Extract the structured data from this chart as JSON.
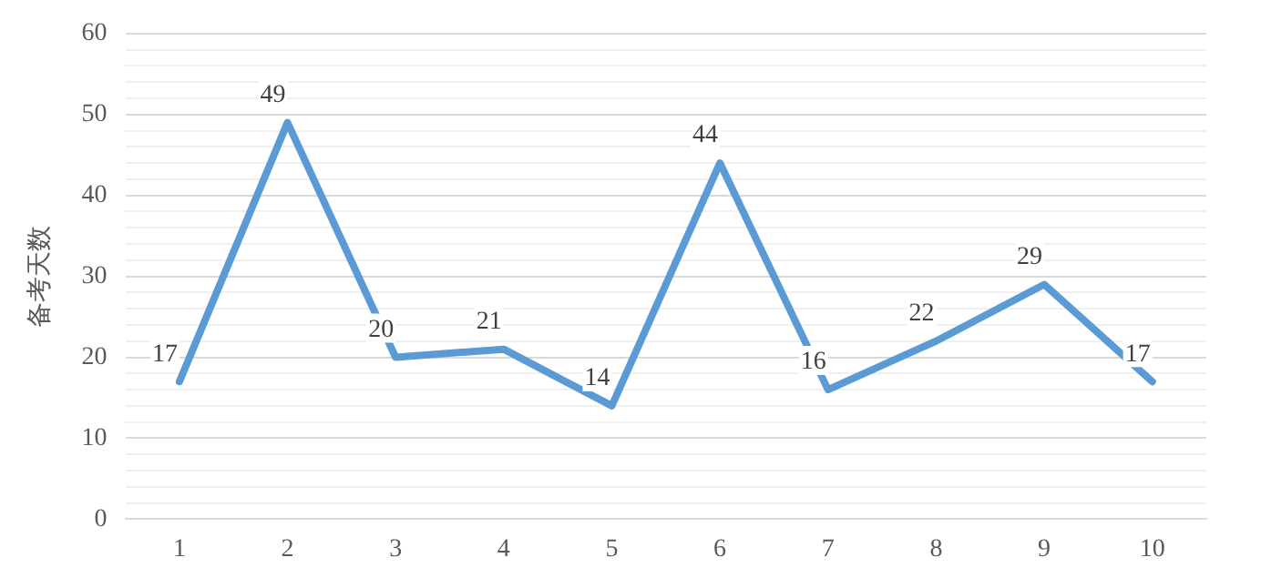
{
  "chart_data": {
    "type": "line",
    "ylabel": "备考天数",
    "categories": [
      "1",
      "2",
      "3",
      "4",
      "5",
      "6",
      "7",
      "8",
      "9",
      "10"
    ],
    "series": [
      {
        "color": "#5b9bd5",
        "values": [
          17,
          49,
          20,
          21,
          14,
          44,
          16,
          22,
          29,
          17
        ]
      }
    ],
    "ylim": [
      0,
      60
    ],
    "yticks": [
      0,
      {
        "value": 2,
        "label": null
      },
      {
        "value": 4,
        "label": null
      },
      {
        "value": 6,
        "label": null
      },
      {
        "value": 8,
        "label": null
      },
      10,
      {
        "value": 12,
        "label": null
      },
      {
        "value": 14,
        "label": null
      },
      {
        "value": 16,
        "label": null
      },
      {
        "value": 18,
        "label": null
      },
      20,
      {
        "value": 22,
        "label": null
      },
      {
        "value": 24,
        "label": null
      },
      {
        "value": 26,
        "label": null
      },
      {
        "value": 28,
        "label": null
      },
      30,
      {
        "value": 32,
        "label": null
      },
      {
        "value": 34,
        "label": null
      },
      {
        "value": 36,
        "label": null
      },
      {
        "value": 38,
        "label": null
      },
      40,
      {
        "value": 42,
        "label": null
      },
      {
        "value": 44,
        "label": null
      },
      {
        "value": 46,
        "label": null
      },
      {
        "value": 48,
        "label": null
      },
      50,
      {
        "value": 52,
        "label": null
      },
      {
        "value": 54,
        "label": null
      },
      {
        "value": 56,
        "label": null
      },
      {
        "value": 58,
        "label": null
      },
      60
    ],
    "grid": "y",
    "legend": false,
    "marker": "none",
    "line_style": "solid",
    "data_labels": true
  }
}
